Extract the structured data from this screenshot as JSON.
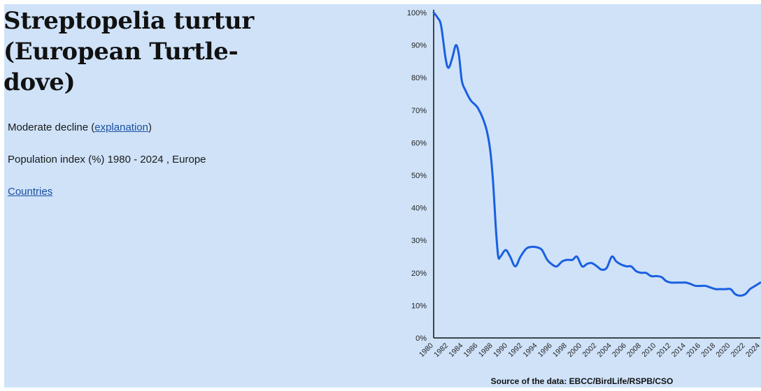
{
  "header": {
    "title": "Streptopelia turtur (European Turtle-dove)"
  },
  "trend": {
    "label": "Moderate decline",
    "open_paren": "(",
    "link_text": "explanation",
    "close_paren": ")"
  },
  "subtitle": "Population index (%) 1980 - 2024 , Europe",
  "countries_link": "Countries",
  "source": "Source of the data: EBCC/BirdLife/RSPB/CSO",
  "colors": {
    "background": "#cfe2f8",
    "line": "#1a5fe0",
    "axis": "#111111"
  },
  "chart_data": {
    "type": "line",
    "title": "",
    "xlabel": "",
    "ylabel": "",
    "xlim": [
      1980,
      2024
    ],
    "ylim": [
      0,
      100
    ],
    "grid": false,
    "y_ticks": [
      "0%",
      "10%",
      "20%",
      "30%",
      "40%",
      "50%",
      "60%",
      "70%",
      "80%",
      "90%",
      "100%"
    ],
    "x_ticks": [
      "1980",
      "1982",
      "1984",
      "1986",
      "1988",
      "1990",
      "1992",
      "1994",
      "1996",
      "1998",
      "2000",
      "2002",
      "2004",
      "2006",
      "2008",
      "2010",
      "2012",
      "2014",
      "2016",
      "2018",
      "2020",
      "2022",
      "2024"
    ],
    "series": [
      {
        "x": [
          1980,
          1980.5,
          1981,
          1981.6,
          1982,
          1982.5,
          1983,
          1983.4,
          1983.8,
          1984.3,
          1985,
          1986,
          1987,
          1987.6,
          1988,
          1988.4,
          1988.7,
          1989,
          1989.7,
          1990.3,
          1991,
          1991.7,
          1992.5,
          1993.3,
          1994,
          1994.6,
          1995.3,
          1996,
          1996.6,
          1997.3,
          1998,
          1998.7,
          1999.3,
          2000,
          2000.7,
          2001.3,
          2002,
          2002.6,
          2003.3,
          2004,
          2004.6,
          2005.3,
          2006,
          2006.6,
          2007.3,
          2008,
          2008.6,
          2009.3,
          2010,
          2010.7,
          2011.3,
          2012,
          2012.6,
          2013.3,
          2014,
          2014.7,
          2015.3,
          2016,
          2016.6,
          2017.3,
          2018,
          2018.7,
          2019.3,
          2020,
          2020.6,
          2021.3,
          2022,
          2022.6,
          2023.3,
          2024
        ],
        "y": [
          100,
          98.5,
          96,
          86,
          83,
          86,
          90,
          87,
          79,
          76,
          73,
          70.5,
          65,
          58,
          48,
          33,
          25,
          25,
          27,
          25,
          22,
          25,
          27.5,
          28,
          27.8,
          27,
          24,
          22.5,
          22,
          23.5,
          24,
          24,
          25,
          22,
          22.8,
          23,
          22,
          21,
          21.5,
          25,
          23.5,
          22.5,
          22,
          22,
          20.5,
          20,
          20,
          19,
          19,
          18.7,
          17.5,
          17,
          17,
          17,
          17,
          16.5,
          16,
          16,
          16,
          15.5,
          15,
          15,
          15,
          15,
          13.5,
          13,
          13.5,
          15,
          16,
          17
        ]
      }
    ]
  }
}
